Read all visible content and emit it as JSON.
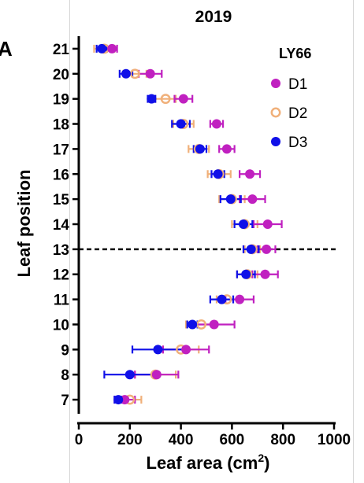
{
  "chart_data": {
    "type": "scatter",
    "panel_label": "A",
    "title": "2019",
    "legend_title": "LY66",
    "legend_position": "top-right",
    "xlabel": "Leaf area (cm²)",
    "xlabel_text": "Leaf area (cm",
    "xlabel_sup": "2",
    "xlabel_close": ")",
    "ylabel": "Leaf position",
    "xlim": [
      0,
      1000
    ],
    "xticks": [
      "0",
      "200",
      "400",
      "600",
      "800",
      "1000"
    ],
    "ylim": [
      6.5,
      21.5
    ],
    "yticks": [
      "7",
      "8",
      "9",
      "10",
      "11",
      "12",
      "13",
      "14",
      "15",
      "16",
      "17",
      "18",
      "19",
      "20",
      "21"
    ],
    "reference_line": {
      "y": 13,
      "style": "dashed"
    },
    "grid": false,
    "y": [
      7,
      8,
      9,
      10,
      11,
      12,
      13,
      14,
      15,
      16,
      17,
      18,
      19,
      20,
      21
    ],
    "series": [
      {
        "name": "D1",
        "color": "#c020c0",
        "marker": "filled-circle",
        "mean": [
          180,
          305,
          420,
          530,
          630,
          730,
          735,
          740,
          680,
          670,
          580,
          540,
          410,
          280,
          130
        ],
        "err": [
          40,
          85,
          90,
          80,
          55,
          50,
          35,
          55,
          50,
          40,
          30,
          25,
          35,
          45,
          20
        ]
      },
      {
        "name": "D2",
        "color": "#f0b07a",
        "marker": "open-circle",
        "mean": [
          200,
          300,
          400,
          480,
          580,
          660,
          680,
          650,
          600,
          550,
          470,
          410,
          340,
          220,
          100
        ],
        "err": [
          45,
          80,
          70,
          60,
          40,
          40,
          30,
          50,
          50,
          45,
          40,
          40,
          40,
          45,
          40
        ]
      },
      {
        "name": "D3",
        "color": "#1010e8",
        "marker": "filled-circle",
        "mean": [
          155,
          200,
          310,
          445,
          560,
          655,
          675,
          645,
          595,
          545,
          475,
          400,
          285,
          185,
          90
        ],
        "err": [
          15,
          100,
          100,
          20,
          45,
          35,
          30,
          35,
          40,
          25,
          25,
          35,
          15,
          25,
          20
        ]
      }
    ]
  }
}
